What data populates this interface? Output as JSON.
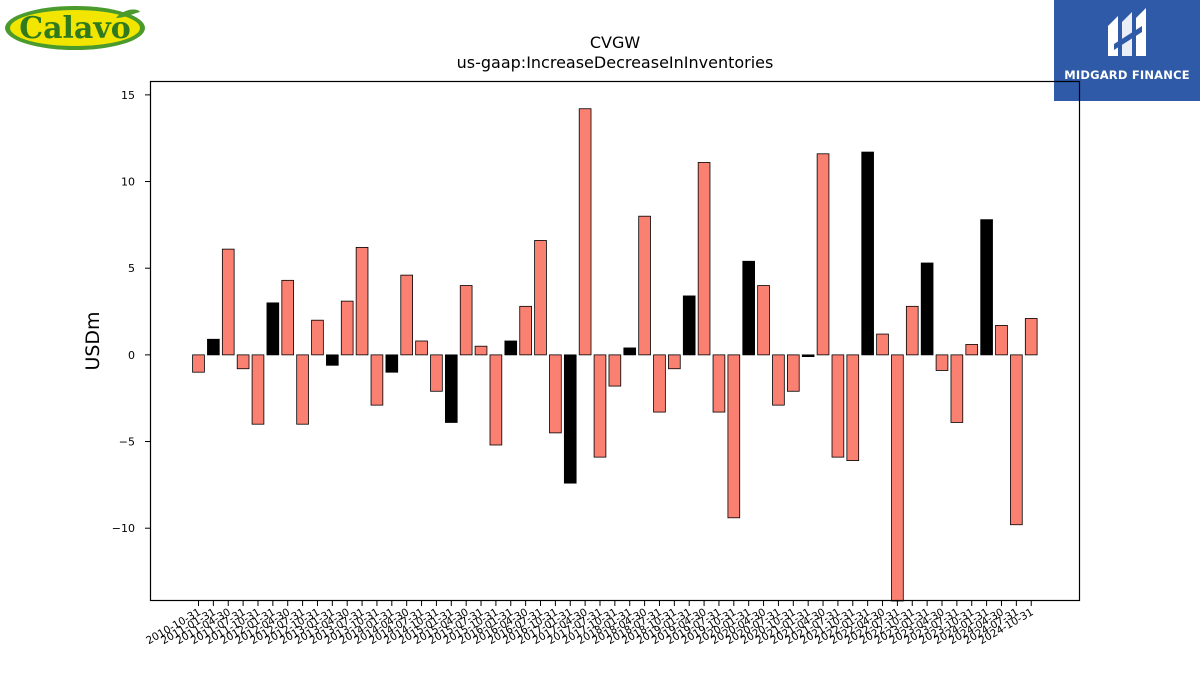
{
  "logos": {
    "left_text": "Calavo",
    "right_text": "MIDGARD FINANCE",
    "brand_green": "#4a9a2c",
    "brand_yellow": "#f2e600",
    "brand_blue": "#2e5aa8"
  },
  "chart_data": {
    "type": "bar",
    "title": "CVGW",
    "subtitle": "us-gaap:IncreaseDecreaseInInventories",
    "xlabel": "",
    "ylabel": "USDm",
    "ylim": [
      -14.2,
      15.8
    ],
    "yticks": [
      -10,
      -5,
      0,
      5,
      10,
      15
    ],
    "ytick_labels": [
      "−10",
      "−5",
      "0",
      "5",
      "10",
      "15"
    ],
    "grid": false,
    "legend": "none",
    "colors": {
      "annual": "#000000",
      "quarterly": "#fa8072",
      "edge": "#000000"
    },
    "categories": [
      "2010-10-31",
      "2011-01-31",
      "2011-04-30",
      "2011-07-31",
      "2011-10-31",
      "2012-01-31",
      "2012-04-30",
      "2012-07-31",
      "2012-10-31",
      "2013-01-31",
      "2013-04-30",
      "2013-07-31",
      "2013-10-31",
      "2014-01-31",
      "2014-04-30",
      "2014-07-31",
      "2014-10-31",
      "2015-01-31",
      "2015-04-30",
      "2015-07-31",
      "2015-10-31",
      "2016-01-31",
      "2016-04-30",
      "2016-07-31",
      "2016-10-31",
      "2017-01-31",
      "2017-04-30",
      "2017-07-31",
      "2017-10-31",
      "2018-01-31",
      "2018-04-30",
      "2018-07-31",
      "2018-10-31",
      "2019-01-31",
      "2019-04-30",
      "2019-07-31",
      "2019-10-31",
      "2020-01-31",
      "2020-04-30",
      "2020-07-31",
      "2020-10-31",
      "2021-01-31",
      "2021-04-30",
      "2021-07-31",
      "2021-10-31",
      "2022-01-31",
      "2022-04-30",
      "2022-07-31",
      "2022-10-31",
      "2023-01-31",
      "2023-04-30",
      "2023-07-31",
      "2023-10-31",
      "2024-01-31",
      "2024-04-30",
      "2024-07-31",
      "2024-10-31"
    ],
    "values": [
      -1.0,
      0.9,
      6.1,
      -0.8,
      -4.0,
      3.0,
      4.3,
      -4.0,
      2.0,
      -0.6,
      3.1,
      6.2,
      -2.9,
      -1.0,
      4.6,
      0.8,
      -2.1,
      -3.9,
      4.0,
      0.5,
      -5.2,
      0.8,
      2.8,
      6.6,
      -4.5,
      -7.4,
      14.2,
      -5.9,
      -1.8,
      0.4,
      8.0,
      -3.3,
      -0.8,
      3.4,
      11.1,
      -3.3,
      -9.4,
      5.4,
      4.0,
      -2.9,
      -2.1,
      -0.1,
      11.6,
      -5.9,
      -6.1,
      11.7,
      1.2,
      -14.2,
      2.8,
      5.3,
      -0.9,
      -3.9,
      0.6,
      7.8,
      1.7,
      -9.8,
      2.1
    ],
    "kind": [
      "Q",
      "A",
      "Q",
      "Q",
      "Q",
      "A",
      "Q",
      "Q",
      "Q",
      "A",
      "Q",
      "Q",
      "Q",
      "A",
      "Q",
      "Q",
      "Q",
      "A",
      "Q",
      "Q",
      "Q",
      "A",
      "Q",
      "Q",
      "Q",
      "A",
      "Q",
      "Q",
      "Q",
      "A",
      "Q",
      "Q",
      "Q",
      "A",
      "Q",
      "Q",
      "Q",
      "A",
      "Q",
      "Q",
      "Q",
      "A",
      "Q",
      "Q",
      "Q",
      "A",
      "Q",
      "Q",
      "Q",
      "A",
      "Q",
      "Q",
      "Q",
      "A",
      "Q",
      "Q",
      "Q"
    ]
  }
}
